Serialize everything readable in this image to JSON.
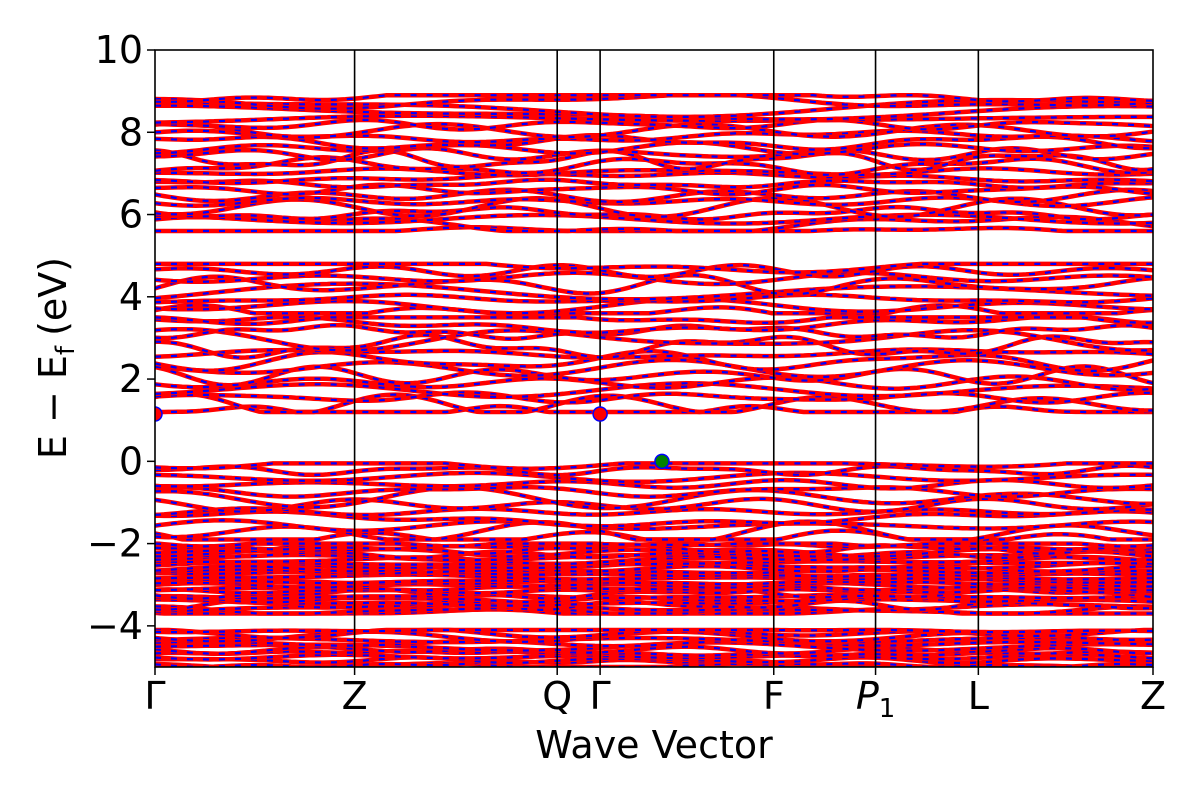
{
  "chart_data": {
    "type": "line",
    "title": "",
    "xlabel": "Wave Vector",
    "ylabel": "E − E_f (eV)",
    "ylabel_parts": {
      "main": "E − E",
      "sub": "f",
      "unit": "(eV)"
    },
    "ylim": [
      -5,
      10
    ],
    "yticks": [
      {
        "label": "10",
        "value": 10
      },
      {
        "label": "8",
        "value": 8
      },
      {
        "label": "6",
        "value": 6
      },
      {
        "label": "4",
        "value": 4
      },
      {
        "label": "2",
        "value": 2
      },
      {
        "label": "0",
        "value": 0
      },
      {
        "label": "−2",
        "value": -2
      },
      {
        "label": "−4",
        "value": -4
      }
    ],
    "xlim": [
      0,
      1
    ],
    "kpoints": [
      {
        "label": "Γ",
        "pos": 0.0
      },
      {
        "label": "Z",
        "pos": 0.2
      },
      {
        "label": "Q",
        "pos": 0.403
      },
      {
        "label": "Γ",
        "pos": 0.446
      },
      {
        "label": "F",
        "pos": 0.62
      },
      {
        "label": "P",
        "sub": "1",
        "pos": 0.722
      },
      {
        "label": "L",
        "pos": 0.825
      },
      {
        "label": "Z",
        "pos": 1.0
      }
    ],
    "vertical_lines": [
      0.2,
      0.403,
      0.446,
      0.62,
      0.722,
      0.825
    ],
    "series_colors": {
      "spin_up": "#ff0000",
      "spin_down": "#0000ff"
    },
    "band_groups": [
      {
        "name": "",
        "count": 12,
        "ymin": -5.0,
        "ymax": -4.1
      },
      {
        "name": "",
        "count": 26,
        "ymin": -3.7,
        "ymax": -2.0
      },
      {
        "name": "",
        "count": 12,
        "ymin": -1.9,
        "ymax": -0.05
      },
      {
        "name": "",
        "count": 14,
        "ymin": 1.2,
        "ymax": 3.5
      },
      {
        "name": "",
        "count": 8,
        "ymin": 3.6,
        "ymax": 4.8
      },
      {
        "name": "",
        "count": 24,
        "ymin": 5.6,
        "ymax": 8.9
      }
    ],
    "markers": [
      {
        "x": 0.0,
        "y": 1.15,
        "color": "#ff0000"
      },
      {
        "x": 0.446,
        "y": 1.15,
        "color": "#ff0000"
      },
      {
        "x": 0.508,
        "y": 0.0,
        "color": "#008000"
      }
    ]
  }
}
